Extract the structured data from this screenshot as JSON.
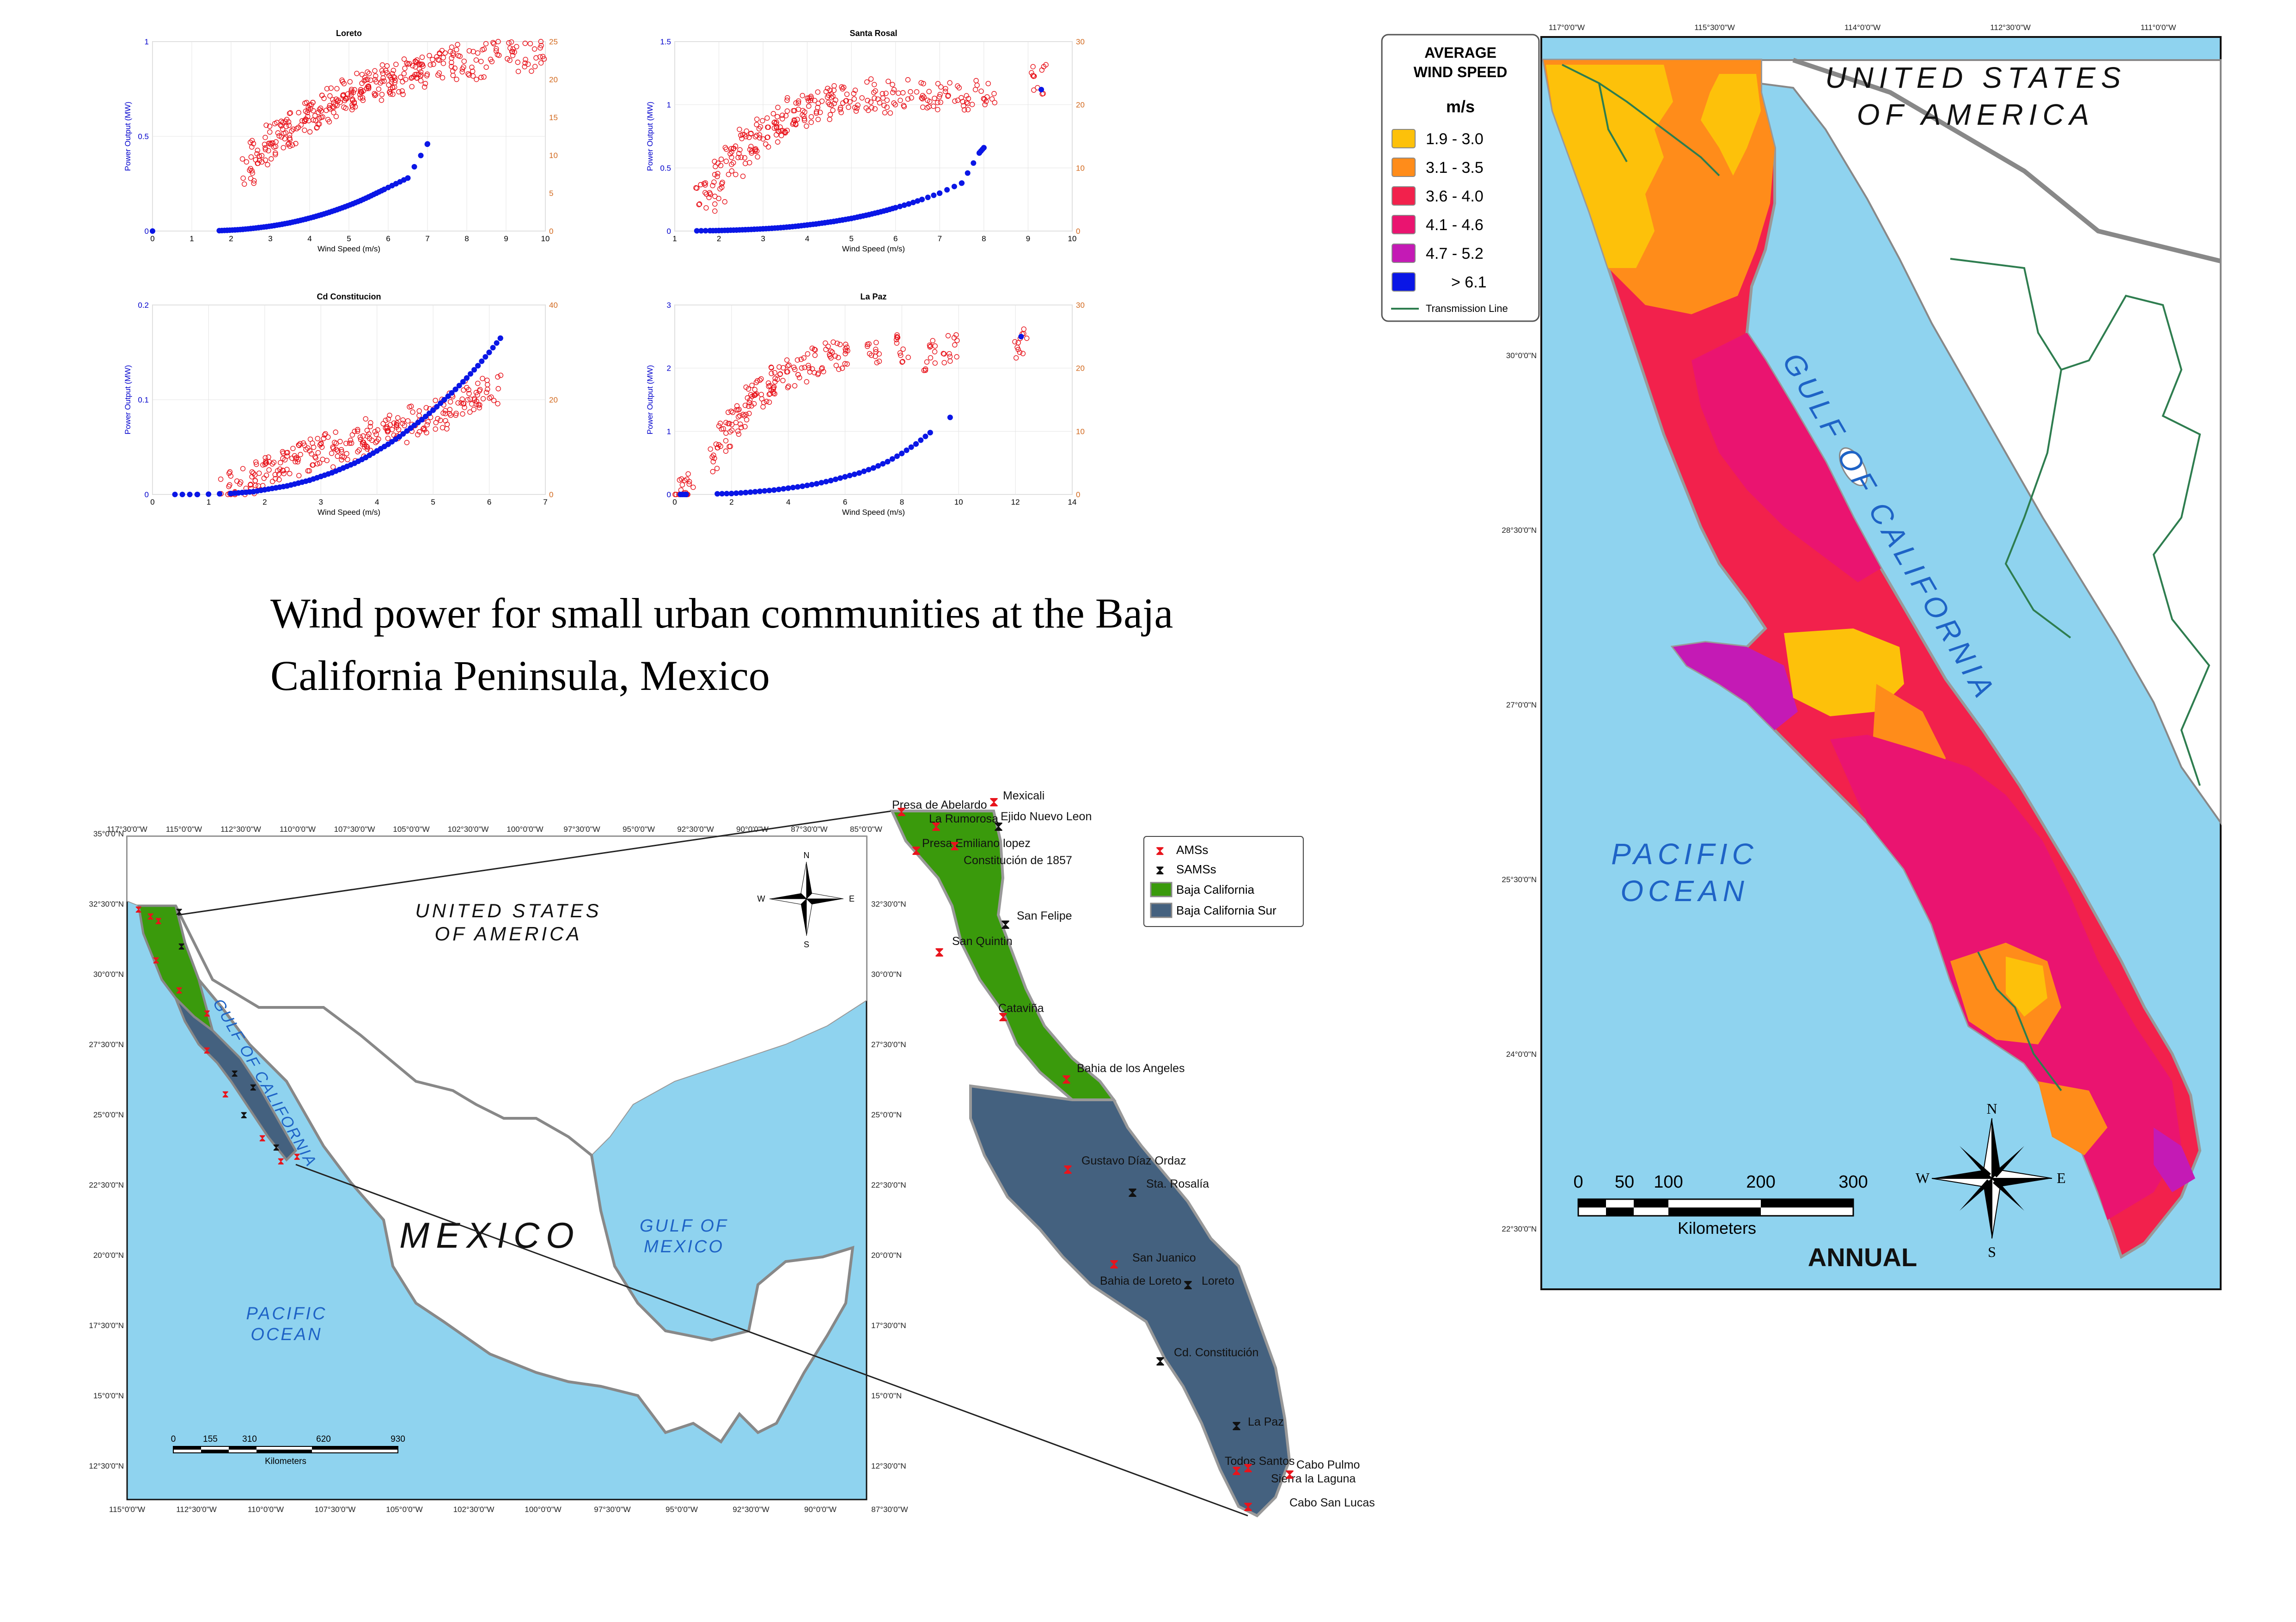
{
  "title_lines": [
    "Wind power for small urban communities at the Baja",
    "California Peninsula, Mexico"
  ],
  "chart_data": [
    {
      "type": "scatter",
      "title": "Loreto",
      "xlabel": "Wind Speed (m/s)",
      "ylabel": "Power Output (MW)",
      "xlim": [
        0,
        10
      ],
      "ylim": [
        0,
        1
      ],
      "y2lim": [
        0,
        25
      ],
      "xticks": [
        "0",
        "1",
        "2",
        "3",
        "4",
        "5",
        "6",
        "7",
        "8",
        "9",
        "10"
      ],
      "yticks": [
        "0",
        "0.5",
        "1"
      ],
      "y2ticks": [
        "0",
        "5",
        "10",
        "15",
        "20",
        "25"
      ],
      "power_x": [
        0,
        1.7,
        1.9,
        2.1,
        2.3,
        2.5,
        2.7,
        2.9,
        3.1,
        3.3,
        3.5,
        3.7,
        3.9,
        4.1,
        4.3,
        4.5,
        4.7,
        4.9,
        5.1,
        5.3,
        5.5,
        5.7,
        5.9,
        6.2,
        6.5,
        7.0
      ],
      "power_y": [
        0,
        0.002,
        0.004,
        0.006,
        0.009,
        0.013,
        0.018,
        0.023,
        0.029,
        0.036,
        0.044,
        0.053,
        0.063,
        0.074,
        0.086,
        0.099,
        0.113,
        0.128,
        0.144,
        0.161,
        0.18,
        0.2,
        0.22,
        0.25,
        0.28,
        0.46
      ],
      "ws_x": [
        2.5,
        2.7,
        2.9,
        3.1,
        3.3,
        3.5,
        3.7,
        3.9,
        4.1,
        4.3,
        4.5,
        4.7,
        4.9,
        5.1,
        5.3,
        5.5,
        5.7,
        5.9,
        6.1,
        6.3,
        6.5,
        6.7,
        6.9,
        7.2,
        7.5,
        7.8,
        8.2,
        8.6,
        9.0,
        9.5,
        10.0
      ],
      "ws_y": [
        8,
        10,
        11,
        12,
        13,
        13,
        14,
        15,
        15,
        16,
        17,
        17,
        18,
        18,
        19,
        19,
        19,
        20,
        20,
        20,
        21,
        21,
        22,
        22,
        22,
        23,
        22,
        23,
        24,
        23,
        24
      ]
    },
    {
      "type": "scatter",
      "title": "Santa Rosal",
      "xlabel": "Wind Speed (m/s)",
      "ylabel": "Power Output (MW)",
      "xlim": [
        1,
        10
      ],
      "ylim": [
        0,
        1.5
      ],
      "y2lim": [
        0,
        30
      ],
      "xticks": [
        "1",
        "2",
        "3",
        "4",
        "5",
        "6",
        "7",
        "8",
        "9",
        "10"
      ],
      "yticks": [
        "0",
        "0.5",
        "1",
        "1.5"
      ],
      "y2ticks": [
        "0",
        "10",
        "20",
        "30"
      ],
      "power_x": [
        1.5,
        1.8,
        2.0,
        2.2,
        2.4,
        2.6,
        2.8,
        3.0,
        3.2,
        3.4,
        3.6,
        3.8,
        4.0,
        4.2,
        4.4,
        4.6,
        4.8,
        5.0,
        5.2,
        5.4,
        5.6,
        5.8,
        6.0,
        6.3,
        6.6,
        7.0,
        7.5,
        7.9,
        8.0,
        9.3
      ],
      "power_y": [
        0.002,
        0.003,
        0.004,
        0.006,
        0.008,
        0.011,
        0.014,
        0.018,
        0.022,
        0.027,
        0.033,
        0.04,
        0.048,
        0.056,
        0.066,
        0.076,
        0.088,
        0.1,
        0.115,
        0.13,
        0.147,
        0.165,
        0.185,
        0.215,
        0.25,
        0.3,
        0.38,
        0.62,
        0.66,
        1.12
      ],
      "ws_x": [
        1.7,
        1.9,
        2.1,
        2.3,
        2.5,
        2.7,
        2.9,
        3.1,
        3.3,
        3.5,
        3.7,
        3.9,
        4.1,
        4.4,
        4.7,
        5.0,
        5.3,
        5.6,
        6.0,
        6.4,
        6.8,
        7.2,
        7.6,
        8.0,
        9.3
      ],
      "ws_y": [
        5,
        7,
        9,
        11,
        13,
        14,
        15,
        16,
        17,
        18,
        19,
        19,
        20,
        20,
        21,
        21,
        21,
        22,
        21,
        22,
        21,
        22,
        21,
        22,
        24
      ]
    },
    {
      "type": "scatter",
      "title": "Cd Constitucion",
      "xlabel": "Wind Speed (m/s)",
      "ylabel": "Power Output (MW)",
      "xlim": [
        0,
        7
      ],
      "ylim": [
        0,
        0.2
      ],
      "y2lim": [
        0,
        40
      ],
      "xticks": [
        "0",
        "1",
        "2",
        "3",
        "4",
        "5",
        "6",
        "7"
      ],
      "yticks": [
        "0",
        "0.1",
        "0.2"
      ],
      "y2ticks": [
        "0",
        "20",
        "40"
      ],
      "power_x": [
        0.4,
        0.8,
        1.4,
        1.6,
        1.8,
        2.0,
        2.2,
        2.4,
        2.6,
        2.8,
        3.0,
        3.2,
        3.4,
        3.6,
        3.8,
        4.0,
        4.2,
        4.4,
        4.6,
        4.8,
        5.0,
        5.2,
        5.4,
        5.6,
        5.8,
        6.0,
        6.2
      ],
      "power_y": [
        0,
        0,
        0.001,
        0.002,
        0.003,
        0.005,
        0.007,
        0.009,
        0.012,
        0.015,
        0.019,
        0.023,
        0.028,
        0.033,
        0.039,
        0.046,
        0.053,
        0.061,
        0.07,
        0.079,
        0.089,
        0.1,
        0.111,
        0.123,
        0.136,
        0.15,
        0.165
      ],
      "ws_x": [
        1.4,
        1.6,
        1.8,
        2.0,
        2.2,
        2.4,
        2.6,
        2.8,
        3.0,
        3.2,
        3.4,
        3.6,
        3.8,
        4.0,
        4.2,
        4.4,
        4.6,
        4.8,
        5.0,
        5.2,
        5.4,
        5.6,
        5.8,
        6.0
      ],
      "ws_y": [
        2,
        3,
        4,
        5,
        6,
        7,
        8,
        8,
        9,
        10,
        10,
        11,
        12,
        13,
        13,
        14,
        15,
        16,
        17,
        18,
        19,
        20,
        21,
        22
      ]
    },
    {
      "type": "scatter",
      "title": "La Paz",
      "xlabel": "Wind Speed (m/s)",
      "ylabel": "Power Output (MW)",
      "xlim": [
        0,
        14
      ],
      "ylim": [
        0,
        3
      ],
      "y2lim": [
        0,
        30
      ],
      "xticks": [
        "0",
        "2",
        "4",
        "6",
        "8",
        "10",
        "12",
        "14"
      ],
      "yticks": [
        "0",
        "1",
        "2",
        "3"
      ],
      "y2ticks": [
        "0",
        "10",
        "20",
        "30"
      ],
      "power_x": [
        0.2,
        0.4,
        1.5,
        2.0,
        2.5,
        3.0,
        3.5,
        4.0,
        4.5,
        5.0,
        5.5,
        6.0,
        6.5,
        7.0,
        7.5,
        8.0,
        8.5,
        9.0,
        9.7,
        12.2
      ],
      "power_y": [
        0,
        0,
        0.01,
        0.015,
        0.03,
        0.05,
        0.07,
        0.1,
        0.13,
        0.17,
        0.22,
        0.28,
        0.34,
        0.42,
        0.52,
        0.65,
        0.8,
        0.98,
        1.22,
        2.5
      ],
      "ws_x": [
        0.2,
        0.4,
        1.5,
        1.8,
        2.1,
        2.4,
        2.7,
        3.0,
        3.3,
        3.6,
        4.0,
        4.5,
        5.0,
        5.5,
        6.0,
        7.0,
        8.0,
        9.0,
        9.7,
        12.2
      ],
      "ws_y": [
        0,
        1,
        6,
        9,
        11,
        13,
        15,
        16,
        17,
        18,
        19,
        20,
        21,
        22,
        22,
        22,
        23,
        22,
        23,
        24
      ]
    }
  ],
  "mexico_map": {
    "lon_labels": [
      "117°30'0\"W",
      "115°0'0\"W",
      "112°30'0\"W",
      "110°0'0\"W",
      "107°30'0\"W",
      "105°0'0\"W",
      "102°30'0\"W",
      "100°0'0\"W",
      "97°30'0\"W",
      "95°0'0\"W",
      "92°30'0\"W",
      "90°0'0\"W",
      "87°30'0\"W",
      "85°0'0\"W"
    ],
    "lon_labels_bottom": [
      "115°0'0\"W",
      "112°30'0\"W",
      "110°0'0\"W",
      "107°30'0\"W",
      "105°0'0\"W",
      "102°30'0\"W",
      "100°0'0\"W",
      "97°30'0\"W",
      "95°0'0\"W",
      "92°30'0\"W",
      "90°0'0\"W",
      "87°30'0\"W"
    ],
    "lat_labels": [
      "35°0'0\"N",
      "32°30'0\"N",
      "30°0'0\"N",
      "27°30'0\"N",
      "25°0'0\"N",
      "22°30'0\"N",
      "20°0'0\"N",
      "17°30'0\"N",
      "15°0'0\"N",
      "12°30'0\"N"
    ],
    "usa": "UNITED STATES",
    "usa2": "OF AMERICA",
    "country": "MEXICO",
    "gulf_cal": "GULF OF CALIFORNIA",
    "gulf_mex": "GULF OF",
    "gulf_mex2": "MEXICO",
    "pacific": "PACIFIC",
    "pacific2": "OCEAN",
    "scale_ticks": [
      "0",
      "155",
      "310",
      "620",
      "930"
    ],
    "scale_unit": "Kilometers"
  },
  "baja_inset": {
    "lat_labels": [
      "32°30'0\"N",
      "30°0'0\"N",
      "27°30'0\"N",
      "25°0'0\"N",
      "22°30'0\"N",
      "20°0'0\"N",
      "17°30'0\"N",
      "15°0'0\"N",
      "12°30'0\"N"
    ],
    "sites": [
      "Presa de Abelardo",
      "Mexicali",
      "La Rumorosa",
      "Ejido Nuevo Leon",
      "Presa Emiliano lopez",
      "Constitución de 1857",
      "San Felipe",
      "San Quintin",
      "Cataviña",
      "Bahia de los Angeles",
      "Gustavo Díaz Ordaz",
      "Sta. Rosalía",
      "San Juanico",
      "Bahia de Loreto",
      "Loreto",
      "Cd. Constitución",
      "La Paz",
      "Todos Santos",
      "Cabo Pulmo",
      "Sierra la Laguna",
      "Cabo San Lucas"
    ],
    "legend": {
      "ams": "AMSs",
      "sams": "SAMSs",
      "bc": "Baja California",
      "bcs": "Baja California Sur"
    },
    "colors": {
      "bc": "#3a9a0c",
      "bcs": "#44617f",
      "ams": "#e8141c",
      "sams": "#111111"
    }
  },
  "wind_map": {
    "legend_title": "AVERAGE",
    "legend_title2": "WIND SPEED",
    "legend_unit": "m/s",
    "classes": [
      {
        "label": "1.9 - 3.0",
        "color": "#fdc10a"
      },
      {
        "label": "3.1 - 3.5",
        "color": "#ff8c1a"
      },
      {
        "label": "3.6 - 4.0",
        "color": "#f2214c"
      },
      {
        "label": "4.1 - 4.6",
        "color": "#ea1470"
      },
      {
        "label": "4.7 - 5.2",
        "color": "#c41ab5"
      },
      {
        "label": "> 6.1",
        "color": "#0a16e6"
      }
    ],
    "transmission": "Transmission Line",
    "lon_labels": [
      "117°0'0\"W",
      "115°30'0\"W",
      "114°0'0\"W",
      "112°30'0\"W",
      "111°0'0\"W"
    ],
    "lat_labels": [
      "30°0'0\"N",
      "28°30'0\"N",
      "27°0'0\"N",
      "25°30'0\"N",
      "24°0'0\"N",
      "22°30'0\"N"
    ],
    "usa": "UNITED STATES",
    "usa2": "OF AMERICA",
    "gulf": "GULF OF CALIFORNIA",
    "pacific": "PACIFIC",
    "pacific2": "OCEAN",
    "scale_ticks": [
      "0",
      "50",
      "100",
      "200",
      "300"
    ],
    "scale_unit": "Kilometers",
    "period": "ANNUAL",
    "compass": {
      "n": "N",
      "s": "S",
      "e": "E",
      "w": "W"
    }
  }
}
